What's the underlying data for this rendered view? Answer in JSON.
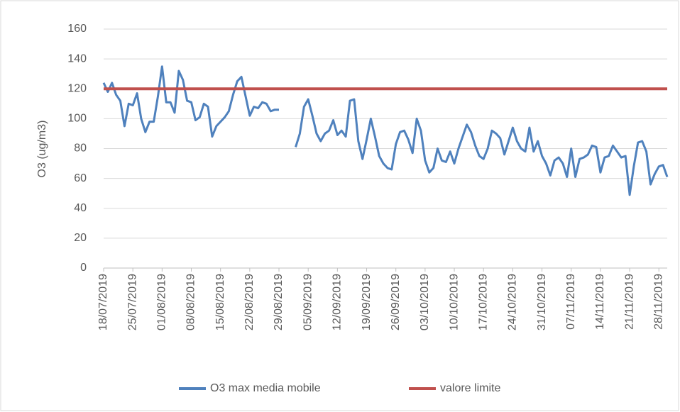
{
  "chart_data": {
    "type": "line",
    "y_axis_label": "O3 (ug/m3)",
    "categories": [
      "18/07/2019",
      null,
      null,
      null,
      null,
      null,
      null,
      "25/07/2019",
      null,
      null,
      null,
      null,
      null,
      null,
      "01/08/2019",
      null,
      null,
      null,
      null,
      null,
      null,
      "08/08/2019",
      null,
      null,
      null,
      null,
      null,
      null,
      "15/08/2019",
      null,
      null,
      null,
      null,
      null,
      null,
      "22/08/2019",
      null,
      null,
      null,
      null,
      null,
      null,
      "29/08/2019",
      null,
      null,
      null,
      null,
      null,
      null,
      "05/09/2019",
      null,
      null,
      null,
      null,
      null,
      null,
      "12/09/2019",
      null,
      null,
      null,
      null,
      null,
      null,
      "19/09/2019",
      null,
      null,
      null,
      null,
      null,
      null,
      "26/09/2019",
      null,
      null,
      null,
      null,
      null,
      null,
      "03/10/2019",
      null,
      null,
      null,
      null,
      null,
      null,
      "10/10/2019",
      null,
      null,
      null,
      null,
      null,
      null,
      "17/10/2019",
      null,
      null,
      null,
      null,
      null,
      null,
      "24/10/2019",
      null,
      null,
      null,
      null,
      null,
      null,
      "31/10/2019",
      null,
      null,
      null,
      null,
      null,
      null,
      "07/11/2019",
      null,
      null,
      null,
      null,
      null,
      null,
      "14/11/2019",
      null,
      null,
      null,
      null,
      null,
      null,
      "21/11/2019",
      null,
      null,
      null,
      null,
      null,
      null,
      "28/11/2019",
      null,
      null
    ],
    "series": [
      {
        "name": "O3 max media mobile",
        "color": "#4f81bd",
        "values": [
          124,
          118,
          124,
          116,
          112,
          95,
          110,
          109,
          117,
          100,
          91,
          98,
          98,
          115,
          135,
          111,
          111,
          104,
          132,
          126,
          112,
          111,
          99,
          101,
          110,
          108,
          88,
          95,
          98,
          101,
          105,
          116,
          125,
          128,
          115,
          102,
          108,
          107,
          111,
          110,
          105,
          106,
          106,
          null,
          null,
          null,
          81,
          90,
          108,
          113,
          102,
          90,
          85,
          90,
          92,
          99,
          89,
          92,
          88,
          112,
          113,
          85,
          73,
          86,
          100,
          88,
          75,
          70,
          67,
          66,
          83,
          91,
          92,
          86,
          77,
          100,
          92,
          72,
          64,
          67,
          80,
          72,
          71,
          78,
          70,
          80,
          88,
          96,
          91,
          82,
          75,
          73,
          80,
          92,
          90,
          87,
          76,
          85,
          94,
          85,
          80,
          78,
          94,
          78,
          85,
          75,
          70,
          62,
          72,
          74,
          70,
          61,
          80,
          61,
          73,
          74,
          76,
          82,
          81,
          64,
          74,
          75,
          82,
          78,
          74,
          75,
          49,
          68,
          84,
          85,
          78,
          56,
          63,
          68,
          69,
          61
        ]
      },
      {
        "name": "valore limite",
        "color": "#c0504d",
        "values": [
          120,
          120,
          120,
          120,
          120,
          120,
          120,
          120,
          120,
          120,
          120,
          120,
          120,
          120,
          120,
          120,
          120,
          120,
          120,
          120,
          120,
          120,
          120,
          120,
          120,
          120,
          120,
          120,
          120,
          120,
          120,
          120,
          120,
          120,
          120,
          120,
          120,
          120,
          120,
          120,
          120,
          120,
          120,
          120,
          120,
          120,
          120,
          120,
          120,
          120,
          120,
          120,
          120,
          120,
          120,
          120,
          120,
          120,
          120,
          120,
          120,
          120,
          120,
          120,
          120,
          120,
          120,
          120,
          120,
          120,
          120,
          120,
          120,
          120,
          120,
          120,
          120,
          120,
          120,
          120,
          120,
          120,
          120,
          120,
          120,
          120,
          120,
          120,
          120,
          120,
          120,
          120,
          120,
          120,
          120,
          120,
          120,
          120,
          120,
          120,
          120,
          120,
          120,
          120,
          120,
          120,
          120,
          120,
          120,
          120,
          120,
          120,
          120,
          120,
          120,
          120,
          120,
          120,
          120,
          120,
          120,
          120,
          120,
          120,
          120,
          120,
          120,
          120,
          120,
          120,
          120,
          120,
          120,
          120,
          120,
          120
        ]
      }
    ],
    "ylim": [
      0,
      160
    ],
    "yticks": [
      0,
      20,
      40,
      60,
      80,
      100,
      120,
      140,
      160
    ],
    "grid": true,
    "legend": "bottom"
  }
}
